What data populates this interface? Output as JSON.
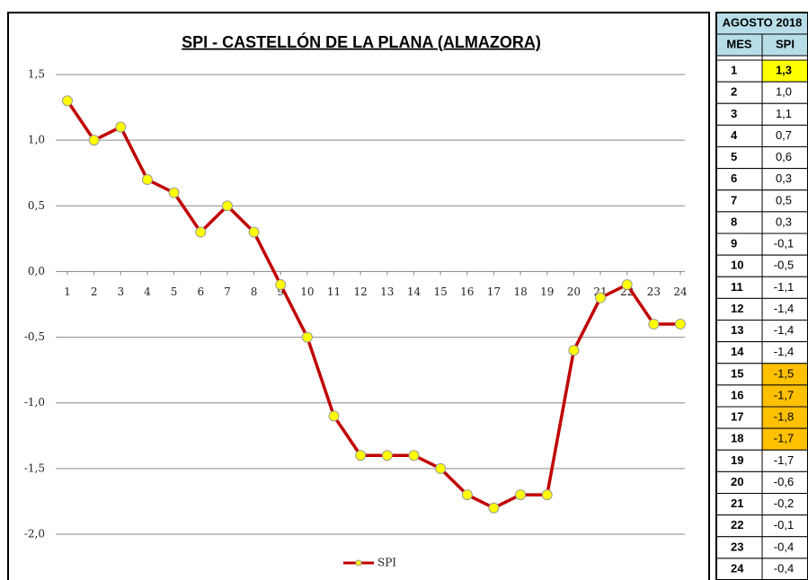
{
  "chart_data": {
    "type": "line",
    "title": "SPI - CASTELLÓN DE LA PLANA (ALMAZORA)",
    "categories": [
      "1",
      "2",
      "3",
      "4",
      "5",
      "6",
      "7",
      "8",
      "9",
      "10",
      "11",
      "12",
      "13",
      "14",
      "15",
      "16",
      "17",
      "18",
      "19",
      "20",
      "21",
      "22",
      "23",
      "24"
    ],
    "series": [
      {
        "name": "SPI",
        "color": "#c00000",
        "marker_color": "#ffff00",
        "values": [
          1.3,
          1.0,
          1.1,
          0.7,
          0.6,
          0.3,
          0.5,
          0.3,
          -0.1,
          -0.5,
          -1.1,
          -1.4,
          -1.4,
          -1.4,
          -1.5,
          -1.7,
          -1.8,
          -1.7,
          -1.7,
          -0.6,
          -0.2,
          -0.1,
          -0.4,
          -0.4
        ]
      }
    ],
    "ylim": [
      -2.0,
      1.5
    ],
    "yticks": [
      {
        "value": 1.5,
        "label": "1,5"
      },
      {
        "value": 1.0,
        "label": "1,0"
      },
      {
        "value": 0.5,
        "label": "0,5"
      },
      {
        "value": 0,
        "label": "0,0"
      },
      {
        "value": -0.5,
        "label": "-0,5"
      },
      {
        "value": -1.0,
        "label": "-1,0"
      },
      {
        "value": -1.5,
        "label": "-1,5"
      },
      {
        "value": -2.0,
        "label": "-2,0"
      }
    ],
    "grid": true,
    "legend": "bottom"
  },
  "table": {
    "title": "AGOSTO 2018",
    "columns": [
      "MES",
      "SPI"
    ],
    "rows": [
      {
        "mes": "1",
        "spi": "1,3",
        "fill": "#ffff00"
      },
      {
        "mes": "2",
        "spi": "1,0"
      },
      {
        "mes": "3",
        "spi": "1,1"
      },
      {
        "mes": "4",
        "spi": "0,7"
      },
      {
        "mes": "5",
        "spi": "0,6"
      },
      {
        "mes": "6",
        "spi": "0,3"
      },
      {
        "mes": "7",
        "spi": "0,5"
      },
      {
        "mes": "8",
        "spi": "0,3"
      },
      {
        "mes": "9",
        "spi": "-0,1"
      },
      {
        "mes": "10",
        "spi": "-0,5"
      },
      {
        "mes": "11",
        "spi": "-1,1"
      },
      {
        "mes": "12",
        "spi": "-1,4"
      },
      {
        "mes": "13",
        "spi": "-1,4"
      },
      {
        "mes": "14",
        "spi": "-1,4"
      },
      {
        "mes": "15",
        "spi": "-1,5",
        "fill": "#ffc000"
      },
      {
        "mes": "16",
        "spi": "-1,7",
        "fill": "#ffc000"
      },
      {
        "mes": "17",
        "spi": "-1,8",
        "fill": "#ffc000"
      },
      {
        "mes": "18",
        "spi": "-1,7",
        "fill": "#ffc000"
      },
      {
        "mes": "19",
        "spi": "-1,7"
      },
      {
        "mes": "20",
        "spi": "-0,6"
      },
      {
        "mes": "21",
        "spi": "-0,2"
      },
      {
        "mes": "22",
        "spi": "-0,1"
      },
      {
        "mes": "23",
        "spi": "-0,4"
      },
      {
        "mes": "24",
        "spi": "-0,4"
      }
    ]
  }
}
